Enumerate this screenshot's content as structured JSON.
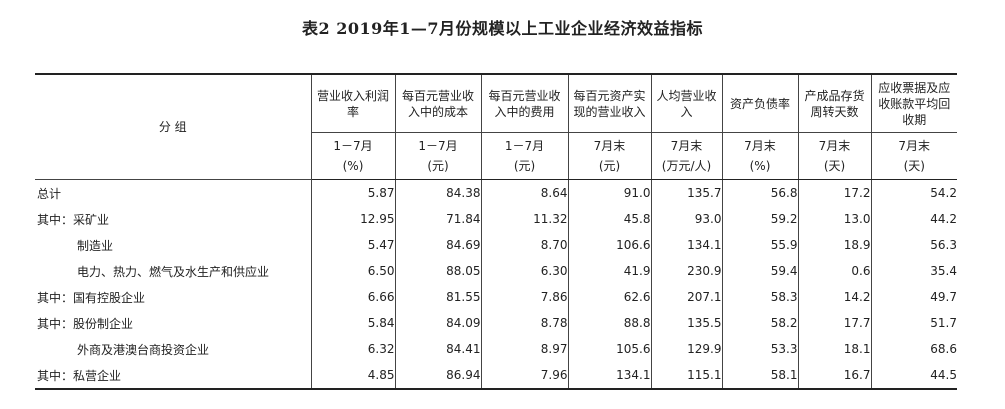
{
  "title": "表2  2019年1—7月份规模以上工业企业经济效益指标",
  "header": {
    "group_label": "分    组",
    "columns": [
      {
        "name": "营业收入利润率",
        "period": "1－7月",
        "unit": "(%)"
      },
      {
        "name": "每百元营业收入中的成本",
        "period": "1－7月",
        "unit": "(元)"
      },
      {
        "name": "每百元营业收入中的费用",
        "period": "1－7月",
        "unit": "(元)"
      },
      {
        "name": "每百元资产实现的营业收入",
        "period": "7月末",
        "unit": "(元)"
      },
      {
        "name": "人均营业收入",
        "period": "7月末",
        "unit": "(万元/人)"
      },
      {
        "name": "资产负债率",
        "period": "7月末",
        "unit": "(%)"
      },
      {
        "name": "产成品存货周转天数",
        "period": "7月末",
        "unit": "(天)"
      },
      {
        "name": "应收票据及应收账款平均回收期",
        "period": "7月末",
        "unit": "(天)"
      }
    ]
  },
  "rows": [
    {
      "prefix": "",
      "label": "总计",
      "values": [
        "5.87",
        "84.38",
        "8.64",
        "91.0",
        "135.7",
        "56.8",
        "17.2",
        "54.2"
      ]
    },
    {
      "prefix": "其中：",
      "label": "采矿业",
      "values": [
        "12.95",
        "71.84",
        "11.32",
        "45.8",
        "93.0",
        "59.2",
        "13.0",
        "44.2"
      ]
    },
    {
      "prefix": "",
      "label": "制造业",
      "values": [
        "5.47",
        "84.69",
        "8.70",
        "106.6",
        "134.1",
        "55.9",
        "18.9",
        "56.3"
      ]
    },
    {
      "prefix": "",
      "label": "电力、热力、燃气及水生产和供应业",
      "values": [
        "6.50",
        "88.05",
        "6.30",
        "41.9",
        "230.9",
        "59.4",
        "0.6",
        "35.4"
      ]
    },
    {
      "prefix": "其中：",
      "label": "国有控股企业",
      "values": [
        "6.66",
        "81.55",
        "7.86",
        "62.6",
        "207.1",
        "58.3",
        "14.2",
        "49.7"
      ]
    },
    {
      "prefix": "其中：",
      "label": "股份制企业",
      "values": [
        "5.84",
        "84.09",
        "8.78",
        "88.8",
        "135.5",
        "58.2",
        "17.7",
        "51.7"
      ]
    },
    {
      "prefix": "",
      "label": "外商及港澳台商投资企业",
      "values": [
        "6.32",
        "84.41",
        "8.97",
        "105.6",
        "129.9",
        "53.3",
        "18.1",
        "68.6"
      ]
    },
    {
      "prefix": "其中：",
      "label": "私营企业",
      "values": [
        "4.85",
        "86.94",
        "7.96",
        "134.1",
        "115.1",
        "58.1",
        "16.7",
        "44.5"
      ]
    }
  ]
}
